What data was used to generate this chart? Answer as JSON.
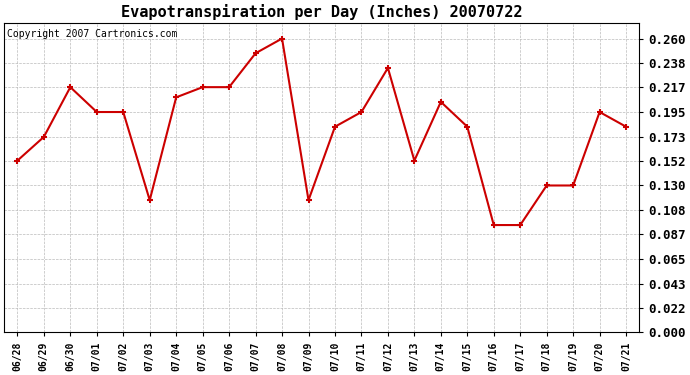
{
  "title": "Evapotranspiration per Day (Inches) 20070722",
  "copyright_text": "Copyright 2007 Cartronics.com",
  "x_labels": [
    "06/28",
    "06/29",
    "06/30",
    "07/01",
    "07/02",
    "07/03",
    "07/04",
    "07/05",
    "07/06",
    "07/07",
    "07/08",
    "07/09",
    "07/10",
    "07/11",
    "07/12",
    "07/13",
    "07/14",
    "07/15",
    "07/16",
    "07/17",
    "07/18",
    "07/19",
    "07/20",
    "07/21"
  ],
  "y_values": [
    0.152,
    0.173,
    0.217,
    0.195,
    0.195,
    0.117,
    0.208,
    0.217,
    0.217,
    0.247,
    0.26,
    0.117,
    0.182,
    0.195,
    0.234,
    0.152,
    0.204,
    0.182,
    0.095,
    0.095,
    0.13,
    0.13,
    0.195,
    0.182
  ],
  "line_color": "#cc0000",
  "marker": "+",
  "marker_size": 5,
  "marker_linewidth": 1.5,
  "marker_color": "#cc0000",
  "background_color": "#ffffff",
  "plot_bg_color": "#ffffff",
  "grid_color": "#bbbbbb",
  "y_ticks": [
    0.0,
    0.022,
    0.043,
    0.065,
    0.087,
    0.108,
    0.13,
    0.152,
    0.173,
    0.195,
    0.217,
    0.238,
    0.26
  ],
  "ylim": [
    0.0,
    0.274
  ],
  "title_fontsize": 11,
  "copyright_fontsize": 7,
  "tick_fontsize": 7,
  "ytick_fontsize": 9,
  "line_width": 1.5
}
